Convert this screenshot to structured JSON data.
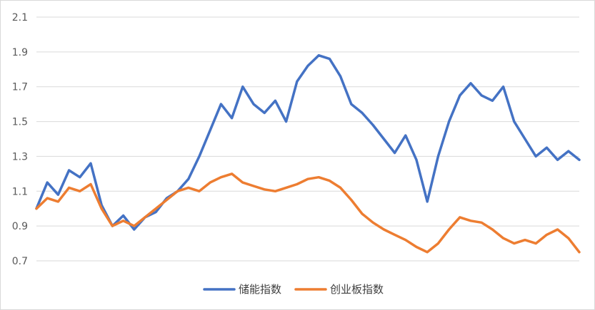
{
  "chart_data": {
    "type": "line",
    "title": "",
    "xlabel": "",
    "ylabel": "",
    "ylim": [
      0.7,
      2.1
    ],
    "yticks": [
      0.7,
      0.9,
      1.1,
      1.3,
      1.5,
      1.7,
      1.9,
      2.1
    ],
    "ytick_labels": [
      "0.7",
      "0.9",
      "1.1",
      "1.3",
      "1.5",
      "1.7",
      "1.9",
      "2.1"
    ],
    "grid": true,
    "legend_position": "bottom",
    "x": [
      0,
      2,
      4,
      6,
      8,
      10,
      12,
      14,
      16,
      18,
      20,
      22,
      24,
      26,
      28,
      30,
      32,
      34,
      36,
      38,
      40,
      42,
      44,
      46,
      48,
      50,
      52,
      54,
      56,
      58,
      60,
      62,
      64,
      66,
      68,
      70,
      72,
      74,
      76,
      78,
      80,
      82,
      84,
      86,
      88,
      90,
      92,
      94,
      96,
      98,
      100
    ],
    "series": [
      {
        "name": "储能指数",
        "color": "#4472c4",
        "values": [
          1.0,
          1.15,
          1.08,
          1.22,
          1.18,
          1.26,
          1.02,
          0.9,
          0.96,
          0.88,
          0.95,
          0.98,
          1.06,
          1.1,
          1.17,
          1.3,
          1.45,
          1.6,
          1.52,
          1.7,
          1.6,
          1.55,
          1.62,
          1.5,
          1.73,
          1.82,
          1.88,
          1.86,
          1.76,
          1.6,
          1.55,
          1.48,
          1.4,
          1.32,
          1.42,
          1.28,
          1.04,
          1.3,
          1.5,
          1.65,
          1.72,
          1.65,
          1.62,
          1.7,
          1.5,
          1.4,
          1.3,
          1.35,
          1.28,
          1.33,
          1.28
        ]
      },
      {
        "name": "创业板指数",
        "color": "#ed7d31",
        "values": [
          1.0,
          1.06,
          1.04,
          1.12,
          1.1,
          1.14,
          1.0,
          0.9,
          0.93,
          0.9,
          0.95,
          1.0,
          1.05,
          1.1,
          1.12,
          1.1,
          1.15,
          1.18,
          1.2,
          1.15,
          1.13,
          1.11,
          1.1,
          1.12,
          1.14,
          1.17,
          1.18,
          1.16,
          1.12,
          1.05,
          0.97,
          0.92,
          0.88,
          0.85,
          0.82,
          0.78,
          0.75,
          0.8,
          0.88,
          0.95,
          0.93,
          0.92,
          0.88,
          0.83,
          0.8,
          0.82,
          0.8,
          0.85,
          0.88,
          0.83,
          0.75
        ]
      }
    ]
  }
}
